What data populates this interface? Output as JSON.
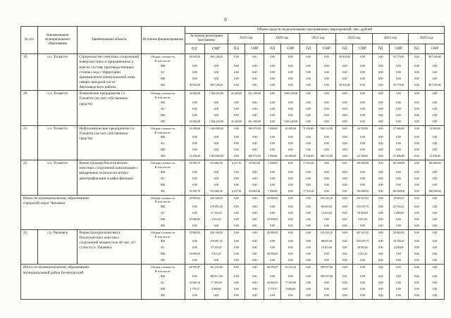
{
  "page": {
    "number": "6"
  },
  "table": {
    "header": {
      "col_num": "№ п/п",
      "col_municipality": "Наименование муниципального образования",
      "col_object": "Наименование объекта",
      "col_source": "Источник финансирования",
      "col_volume": "Объем средств на реализацию программных мероприятий, тыс. рублей",
      "col_period": "За период реализации программы",
      "years": [
        "2019 год",
        "2020 год",
        "2021 год",
        "2022 год",
        "2023 год",
        "2024 год"
      ],
      "pd": "ПД",
      "smr": "СМР",
      "sup_pd": "1",
      "sup_smr": "2"
    },
    "sources": {
      "total_line1": "Общая стоимость",
      "total_line2": "В том числе:",
      "funds": [
        "ФБ",
        "БС",
        "МБ",
        "ВБ"
      ]
    },
    "blocks": [
      {
        "type": "item",
        "num": "19.",
        "municipality": "г.о. Тольятти",
        "object": "Строительство очистных сооружений поверхностных и приравненных к ним по составу производственных сточных вод с территории промышленно-коммунальной зоны северо-западной части Автозаводского района",
        "values": [
          [
            "49 910,00",
            "500 128,00",
            "0,00",
            "0,00",
            "0,00",
            "0,00",
            "0,00",
            "0,00",
            "49 910,00",
            "0,00",
            "0,00",
            "92 778,00",
            "0,00",
            "407 350,00"
          ],
          [
            "0,00",
            "0,00",
            "0,00",
            "0,00",
            "0,00",
            "0,00",
            "0,00",
            "0,00",
            "0,00",
            "0,00",
            "0,00",
            "0,00",
            "0,00",
            "0,00"
          ],
          [
            "0,00",
            "0,00",
            "0,00",
            "0,00",
            "0,00",
            "0,00",
            "0,00",
            "0,00",
            "0,00",
            "0,00",
            "0,00",
            "0,00",
            "0,00",
            "0,00"
          ],
          [
            "0,00",
            "0,00",
            "0,00",
            "0,00",
            "0,00",
            "0,00",
            "0,00",
            "0,00",
            "0,00",
            "0,00",
            "0,00",
            "0,00",
            "0,00",
            "0,00"
          ],
          [
            "49 910,00",
            "500 128,00",
            "0,00",
            "0,00",
            "0,00",
            "0,00",
            "0,00",
            "0,00",
            "49 910,00",
            "0,00",
            "0,00",
            "92 778,00",
            "0,00",
            "407 350,00"
          ]
        ]
      },
      {
        "type": "item",
        "num": "20.",
        "municipality": "г.о. Тольятти",
        "object": "Химические предприятия г.о. Тольятти (за счет собственных средств)",
        "values": [
          [
            "41 620,00",
            "1 566 410,00",
            "41 620,00",
            "561 190,00",
            "0,00",
            "1 005 220,00",
            "0,00",
            "0,00",
            "0,00",
            "0,00",
            "0,00",
            "0,00",
            "0,00",
            "0,00"
          ],
          [
            "0,00",
            "0,00",
            "0,00",
            "0,00",
            "0,00",
            "0,00",
            "0,00",
            "0,00",
            "0,00",
            "0,00",
            "0,00",
            "0,00",
            "0,00",
            "0,00"
          ],
          [
            "0,00",
            "0,00",
            "0,00",
            "0,00",
            "0,00",
            "0,00",
            "0,00",
            "0,00",
            "0,00",
            "0,00",
            "0,00",
            "0,00",
            "0,00",
            "0,00"
          ],
          [
            "0,00",
            "0,00",
            "0,00",
            "0,00",
            "0,00",
            "0,00",
            "0,00",
            "0,00",
            "0,00",
            "0,00",
            "0,00",
            "0,00",
            "0,00",
            "0,00"
          ],
          [
            "41 620,00",
            "1 566 410,00",
            "41 620,00",
            "561 190,00",
            "0,00",
            "1 005 220,00",
            "0,00",
            "0,00",
            "0,00",
            "0,00",
            "0,00",
            "0,00",
            "0,00",
            "0,00"
          ]
        ]
      },
      {
        "type": "item",
        "num": "21.",
        "municipality": "г.о. Тольятти",
        "object": "Нефтехимические предприятия г.о. Тольятти (за счет собственных средств)",
        "values": [
          [
            "16 438,00",
            "1 663 000,00",
            "0,00",
            "586 975,00",
            "7 900,00",
            "26 200,00",
            "8 538,00",
            "984 521,00",
            "0,00",
            "24 740,00",
            "0,00",
            "27 606,00",
            "0,00",
            "12 958,00"
          ],
          [
            "0,00",
            "0,00",
            "0,00",
            "0,00",
            "0,00",
            "0,00",
            "0,00",
            "0,00",
            "0,00",
            "0,00",
            "0,00",
            "0,00",
            "0,00",
            "0,00"
          ],
          [
            "0,00",
            "0,00",
            "0,00",
            "0,00",
            "0,00",
            "0,00",
            "0,00",
            "0,00",
            "0,00",
            "0,00",
            "0,00",
            "0,00",
            "0,00",
            "0,00"
          ],
          [
            "0,00",
            "0,00",
            "0,00",
            "0,00",
            "0,00",
            "0,00",
            "0,00",
            "0,00",
            "0,00",
            "0,00",
            "0,00",
            "0,00",
            "0,00",
            "0,00"
          ],
          [
            "16 438,00",
            "1 663 000,00",
            "0,00",
            "586 975,00",
            "7 900,00",
            "26 200,00",
            "8 538,00",
            "984 521,00",
            "0,00",
            "24 740,00",
            "0,00",
            "27 606,00",
            "0,00",
            "12 958,00"
          ]
        ]
      },
      {
        "type": "item",
        "num": "22.",
        "municipality": "г.о. Тольятти",
        "object": "Реконструкция биологических очистных сооружений канализации с внедрением технологии нитри-денитрификации и дефосфотации",
        "values": [
          [
            "30 700,70",
            "533 082,28",
            "6 147,50",
            "63 082,28",
            "7 200,00",
            "0,00",
            "17 353,20",
            "0,00",
            "0,00",
            "185 000,00",
            "0,00",
            "185 000,00",
            "0,00",
            "100 000,00"
          ],
          [
            "0,00",
            "0,00",
            "0,00",
            "0,00",
            "0,00",
            "0,00",
            "0,00",
            "0,00",
            "0,00",
            "0,00",
            "0,00",
            "0,00",
            "0,00",
            "0,00"
          ],
          [
            "0,00",
            "0,00",
            "0,00",
            "0,00",
            "0,00",
            "0,00",
            "0,00",
            "0,00",
            "0,00",
            "0,00",
            "0,00",
            "0,00",
            "0,00",
            "0,00"
          ],
          [
            "0,00",
            "0,00",
            "0,00",
            "0,00",
            "0,00",
            "0,00",
            "0,00",
            "0,00",
            "0,00",
            "0,00",
            "0,00",
            "0,00",
            "0,00",
            "0,00"
          ],
          [
            "30 700,70",
            "533 082,28",
            "6 147,50",
            "63 082,28",
            "7 200,00",
            "0,00",
            "17 353,20",
            "0,00",
            "0,00",
            "185 000,00",
            "0,00",
            "185 000,00",
            "0,00",
            "100 000,00"
          ]
        ]
      },
      {
        "type": "total",
        "label1": "Итого по муниципальному образованию:",
        "label2": "городской округ Чапаевск",
        "values": [
          [
            "29 990,83",
            "430 340,00",
            "0,00",
            "0,00",
            "29 990,83",
            "0,00",
            "0,00",
            "103 143,10",
            "0,00",
            "297 267,65",
            "0,00",
            "29 929,25",
            "0,00",
            "0,00"
          ],
          [
            "0,00",
            "370 091,50",
            "0,00",
            "0,00",
            "0,00",
            "0,00",
            "0,00",
            "88 691,50",
            "0,00",
            "255 670,75",
            "0,00",
            "25 729,25",
            "0,00",
            "0,00"
          ],
          [
            "0,00",
            "57 235,25",
            "0,00",
            "0,00",
            "0,00",
            "0,00",
            "0,00",
            "14 451,60",
            "0,00",
            "38 583,65",
            "0,00",
            "4 200,00",
            "0,00",
            "0,00"
          ],
          [
            "29 990,83",
            "3 013,25",
            "0,00",
            "0,00",
            "29 990,83",
            "0,00",
            "0,00",
            "0,00",
            "0,00",
            "3 013,25",
            "0,00",
            "0,00",
            "0,00",
            "0,00"
          ],
          [
            "0,00",
            "0,00",
            "0,00",
            "0,00",
            "0,00",
            "0,00",
            "0,00",
            "0,00",
            "0,00",
            "0,00",
            "0,00",
            "0,00",
            "0,00",
            "0,00"
          ]
        ]
      },
      {
        "type": "item",
        "num": "23.",
        "municipality": "г.о. Чапаевск",
        "object": "Реконструкция комплекса биологических очистных сооружений мощностью 40 тыс. м³/ сутки в г.о. Чапаевск",
        "values": [
          [
            "29 990,83",
            "430 340,00",
            "0,00",
            "0,00",
            "29 990,83",
            "0,00",
            "0,00",
            "103 143,10",
            "0,00",
            "297 267,65",
            "0,00",
            "29 929,25",
            "0,00",
            "0,00"
          ],
          [
            "0,00",
            "370 091,50",
            "0,00",
            "0,00",
            "0,00",
            "0,00",
            "0,00",
            "88 691,50",
            "0,00",
            "255 670,75",
            "0,00",
            "25 729,25",
            "0,00",
            "0,00"
          ],
          [
            "0,00",
            "57 235,25",
            "0,00",
            "0,00",
            "0,00",
            "0,00",
            "0,00",
            "14 451,60",
            "0,00",
            "38 583,65",
            "0,00",
            "4 200,00",
            "0,00",
            "0,00"
          ],
          [
            "29 990,83",
            "3 013,25",
            "0,00",
            "0,00",
            "29 990,83",
            "0,00",
            "0,00",
            "0,00",
            "0,00",
            "3 013,25",
            "0,00",
            "0,00",
            "0,00",
            "0,00"
          ],
          [
            "0,00",
            "0,00",
            "0,00",
            "0,00",
            "0,00",
            "0,00",
            "0,00",
            "0,00",
            "0,00",
            "0,00",
            "0,00",
            "0,00",
            "0,00",
            "0,00"
          ]
        ]
      },
      {
        "type": "total",
        "label1": "Итого по муниципальному образованию:",
        "label2": "муниципальный район Безенчукский",
        "values": [
          [
            "28 599,47",
            "581 231,80",
            "0,00",
            "0,00",
            "28 599,47",
            "81 314,20",
            "0,00",
            "499 917,60",
            "0,00",
            "0,00",
            "0,00",
            "0,00",
            "0,00",
            "0,00"
          ],
          [
            "0,00",
            "499 917,60",
            "0,00",
            "0,00",
            "0,00",
            "0,00",
            "0,00",
            "499 917,60",
            "0,00",
            "0,00",
            "0,00",
            "0,00",
            "0,00",
            "0,00"
          ],
          [
            "26 820,10",
            "77 305,60",
            "0,00",
            "0,00",
            "26 820,10",
            "77 305,60",
            "0,00",
            "0,00",
            "0,00",
            "0,00",
            "0,00",
            "0,00",
            "0,00",
            "0,00"
          ],
          [
            "1 779,37",
            "4 008,60",
            "0,00",
            "0,00",
            "1 779,37",
            "4 008,60",
            "0,00",
            "0,00",
            "0,00",
            "0,00",
            "0,00",
            "0,00",
            "0,00",
            "0,00"
          ],
          [
            "0,00",
            "0,00",
            "0,00",
            "0,00",
            "0,00",
            "0,00",
            "0,00",
            "0,00",
            "0,00",
            "0,00",
            "0,00",
            "0,00",
            "0,00",
            "0,00"
          ]
        ]
      }
    ]
  }
}
